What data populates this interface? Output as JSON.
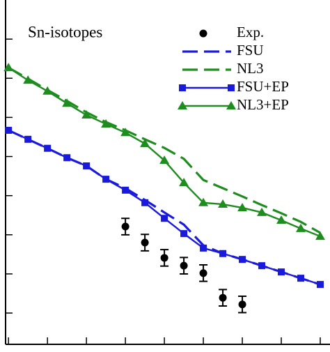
{
  "chart_data": {
    "type": "line",
    "annotation": "Sn-isotopes",
    "x": [
      0,
      1,
      2,
      3,
      4,
      5,
      6,
      7,
      8,
      9,
      10,
      11,
      12,
      13,
      14,
      15,
      16
    ],
    "xlim": [
      -0.15,
      16.5
    ],
    "xticks": [
      0,
      2,
      4,
      6,
      8,
      10,
      12,
      14,
      16
    ],
    "ylim": [
      0.2,
      9
    ],
    "yticks": [
      1,
      2,
      3,
      4,
      5,
      6,
      7,
      8
    ],
    "legend": "upper right",
    "series": [
      {
        "name": "Exp.",
        "color": "#000000",
        "linestyle": "none",
        "marker": "circle",
        "values": [
          null,
          null,
          null,
          null,
          null,
          null,
          3.21,
          2.8,
          2.41,
          2.21,
          2.02,
          1.39,
          1.22,
          null,
          null,
          null,
          null
        ],
        "errors": [
          null,
          null,
          null,
          null,
          null,
          null,
          0.21,
          0.21,
          0.21,
          0.21,
          0.21,
          0.21,
          0.21,
          null,
          null,
          null,
          null
        ]
      },
      {
        "name": "FSU",
        "color": "#1a1adc",
        "linestyle": "dashed",
        "marker": "none",
        "values": [
          5.67,
          5.44,
          5.21,
          4.97,
          4.76,
          4.42,
          4.19,
          3.89,
          3.57,
          3.26,
          2.73,
          2.52,
          2.37,
          2.21,
          2.05,
          1.89,
          1.73
        ]
      },
      {
        "name": "NL3",
        "color": "#1e8c1e",
        "linestyle": "dashed",
        "marker": "none",
        "values": [
          7.27,
          6.99,
          6.7,
          6.42,
          6.13,
          5.88,
          5.67,
          5.44,
          5.22,
          4.94,
          4.4,
          4.19,
          3.98,
          3.76,
          3.55,
          3.33,
          3.05
        ]
      },
      {
        "name": "FSU+EP",
        "color": "#1a1adc",
        "linestyle": "solid",
        "marker": "square",
        "values": [
          5.67,
          5.44,
          5.21,
          4.97,
          4.76,
          4.42,
          4.14,
          3.82,
          3.42,
          3.03,
          2.66,
          2.52,
          2.37,
          2.21,
          2.05,
          1.89,
          1.73
        ]
      },
      {
        "name": "NL3+EP",
        "color": "#1e8c1e",
        "linestyle": "solid",
        "marker": "triangle",
        "values": [
          7.27,
          6.95,
          6.67,
          6.36,
          6.06,
          5.83,
          5.61,
          5.33,
          4.9,
          4.33,
          3.82,
          3.78,
          3.69,
          3.57,
          3.37,
          3.16,
          2.96
        ]
      }
    ]
  }
}
